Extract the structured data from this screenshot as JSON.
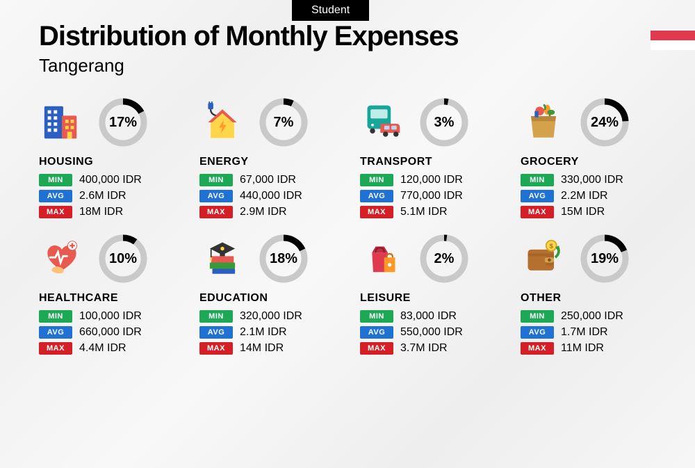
{
  "badge": "Student",
  "title": "Distribution of Monthly Expenses",
  "subtitle": "Tangerang",
  "colors": {
    "min_pill": "#1da856",
    "avg_pill": "#1f72d4",
    "max_pill": "#d41f26",
    "donut_track": "#c9c9c9",
    "donut_value": "#000000"
  },
  "donut": {
    "size": 74,
    "stroke_width": 9,
    "radius": 30
  },
  "labels": {
    "min": "MIN",
    "avg": "AVG",
    "max": "MAX"
  },
  "categories": [
    {
      "key": "housing",
      "name": "HOUSING",
      "pct": 17,
      "min": "400,000 IDR",
      "avg": "2.6M IDR",
      "max": "18M IDR"
    },
    {
      "key": "energy",
      "name": "ENERGY",
      "pct": 7,
      "min": "67,000 IDR",
      "avg": "440,000 IDR",
      "max": "2.9M IDR"
    },
    {
      "key": "transport",
      "name": "TRANSPORT",
      "pct": 3,
      "min": "120,000 IDR",
      "avg": "770,000 IDR",
      "max": "5.1M IDR"
    },
    {
      "key": "grocery",
      "name": "GROCERY",
      "pct": 24,
      "min": "330,000 IDR",
      "avg": "2.2M IDR",
      "max": "15M IDR"
    },
    {
      "key": "healthcare",
      "name": "HEALTHCARE",
      "pct": 10,
      "min": "100,000 IDR",
      "avg": "660,000 IDR",
      "max": "4.4M IDR"
    },
    {
      "key": "education",
      "name": "EDUCATION",
      "pct": 18,
      "min": "320,000 IDR",
      "avg": "2.1M IDR",
      "max": "14M IDR"
    },
    {
      "key": "leisure",
      "name": "LEISURE",
      "pct": 2,
      "min": "83,000 IDR",
      "avg": "550,000 IDR",
      "max": "3.7M IDR"
    },
    {
      "key": "other",
      "name": "OTHER",
      "pct": 19,
      "min": "250,000 IDR",
      "avg": "1.7M IDR",
      "max": "11M IDR"
    }
  ]
}
